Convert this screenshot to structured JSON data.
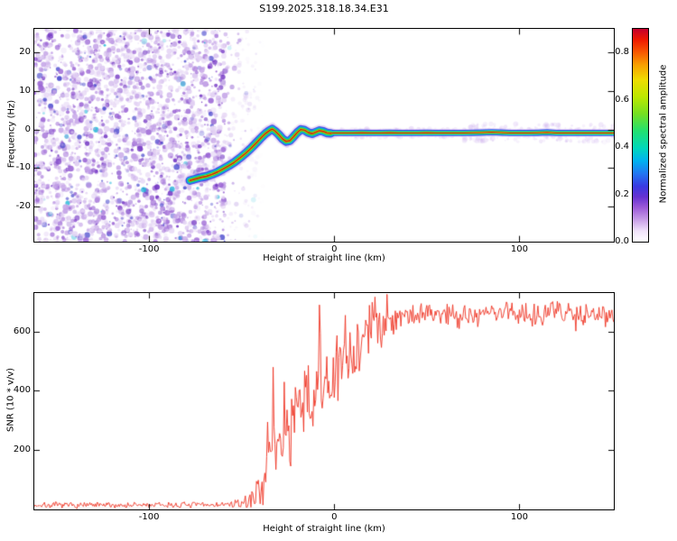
{
  "figure": {
    "title": "S199.2025.318.18.34.E31",
    "background": "#ffffff"
  },
  "chart_data": [
    {
      "type": "heatmap",
      "title": "S199.2025.318.18.34.E31",
      "xlabel": "Height of straight line (km)",
      "ylabel": "Frequency (Hz)",
      "xlim": [
        -162,
        151
      ],
      "ylim": [
        -29,
        26
      ],
      "xticks": [
        -100,
        0,
        100
      ],
      "yticks": [
        -20,
        -10,
        0,
        10,
        20
      ],
      "grid": false,
      "colorbar": {
        "label": "Normalized spectral amplitude",
        "tick_values": [
          0,
          0.2,
          0.4,
          0.6,
          0.8
        ],
        "tick_labels": [
          "0.0",
          "0.2",
          "0.4",
          "0.6",
          "0.8"
        ],
        "vmax": 0.9,
        "colormap": [
          [
            0,
            "#ffffff"
          ],
          [
            0.05,
            "#f0e2fa"
          ],
          [
            0.1,
            "#caa2e8"
          ],
          [
            0.16,
            "#9c5ad8"
          ],
          [
            0.21,
            "#6632d2"
          ],
          [
            0.26,
            "#3a3ae2"
          ],
          [
            0.32,
            "#2277f2"
          ],
          [
            0.38,
            "#00b2f0"
          ],
          [
            0.44,
            "#00d8bb"
          ],
          [
            0.52,
            "#22e070"
          ],
          [
            0.6,
            "#74e022"
          ],
          [
            0.68,
            "#bce800"
          ],
          [
            0.76,
            "#eedd00"
          ],
          [
            0.83,
            "#f8a000"
          ],
          [
            0.89,
            "#f85800"
          ],
          [
            0.95,
            "#ee1800"
          ],
          [
            1,
            "#c4002e"
          ]
        ]
      },
      "noise_region": {
        "x_min": -162,
        "x_max": -59,
        "seed": 42,
        "count": 2600,
        "colors": [
          [
            "#e4d4f4",
            0.35
          ],
          [
            "#c2a0e6",
            0.3
          ],
          [
            "#9a64d4",
            0.2
          ],
          [
            "#7438c4",
            0.1
          ],
          [
            "#4444cc",
            0.04
          ],
          [
            "#22b8d8",
            0.01
          ]
        ]
      },
      "trace": {
        "description": "meteor echo ridge, noisy rise from -13 Hz near -78 km to ~0 Hz, then flat near -0.9 Hz out to 151 km",
        "fuzz_color": "#cfb4ee",
        "flat_width_factor": 0.72,
        "layers": [
          {
            "color": "#d9c4f2",
            "width": 13,
            "alpha": 0.5
          },
          {
            "color": "#2b2bdf",
            "width": 9.5,
            "alpha": 0.85
          },
          {
            "color": "#00c3e8",
            "width": 7,
            "alpha": 0.95
          },
          {
            "color": "#1fcc44",
            "width": 4.6,
            "alpha": 1
          },
          {
            "color": "#d6de00",
            "width": 2.8,
            "alpha": 1
          },
          {
            "color": "#cc1111",
            "width": 1.4,
            "alpha": 1
          }
        ],
        "points": [
          [
            -78,
            -13.2
          ],
          [
            -75,
            -12.8
          ],
          [
            -72,
            -12.4
          ],
          [
            -69,
            -12.1
          ],
          [
            -66,
            -11.6
          ],
          [
            -63,
            -11.0
          ],
          [
            -60,
            -10.2
          ],
          [
            -57,
            -9.4
          ],
          [
            -54,
            -8.5
          ],
          [
            -51,
            -7.4
          ],
          [
            -48,
            -6.2
          ],
          [
            -45,
            -4.9
          ],
          [
            -42,
            -3.4
          ],
          [
            -39,
            -1.9
          ],
          [
            -37,
            -1.0
          ],
          [
            -35,
            -0.3
          ],
          [
            -33.5,
            0.1
          ],
          [
            -32,
            -0.4
          ],
          [
            -30,
            -1.3
          ],
          [
            -28,
            -2.4
          ],
          [
            -26,
            -3.1
          ],
          [
            -24,
            -2.9
          ],
          [
            -22,
            -1.9
          ],
          [
            -20,
            -0.8
          ],
          [
            -18,
            0.0
          ],
          [
            -16,
            -0.2
          ],
          [
            -14,
            -0.8
          ],
          [
            -12,
            -1.1
          ],
          [
            -10,
            -0.7
          ],
          [
            -8,
            -0.3
          ],
          [
            -6,
            -0.5
          ],
          [
            -4,
            -0.9
          ],
          [
            -2,
            -1.0
          ],
          [
            0,
            -0.9
          ],
          [
            5,
            -0.9
          ],
          [
            10,
            -0.9
          ],
          [
            15,
            -0.85
          ],
          [
            20,
            -0.9
          ],
          [
            25,
            -0.9
          ],
          [
            30,
            -0.85
          ],
          [
            35,
            -0.9
          ],
          [
            40,
            -0.9
          ],
          [
            45,
            -0.9
          ],
          [
            50,
            -0.85
          ],
          [
            55,
            -0.9
          ],
          [
            60,
            -0.9
          ],
          [
            65,
            -0.9
          ],
          [
            70,
            -0.9
          ],
          [
            75,
            -0.85
          ],
          [
            80,
            -0.8
          ],
          [
            85,
            -0.7
          ],
          [
            90,
            -0.8
          ],
          [
            95,
            -0.9
          ],
          [
            100,
            -0.9
          ],
          [
            105,
            -0.9
          ],
          [
            110,
            -0.85
          ],
          [
            115,
            -0.75
          ],
          [
            120,
            -0.9
          ],
          [
            125,
            -0.9
          ],
          [
            130,
            -0.9
          ],
          [
            135,
            -0.9
          ],
          [
            140,
            -0.9
          ],
          [
            145,
            -0.9
          ],
          [
            150,
            -0.9
          ],
          [
            151,
            -0.9
          ]
        ]
      }
    },
    {
      "type": "line",
      "xlabel": "Height of straight line (km)",
      "ylabel": "SNR (10 * v/v)",
      "xlim": [
        -162,
        151
      ],
      "ylim": [
        0,
        730
      ],
      "xticks": [
        -100,
        0,
        100
      ],
      "yticks": [
        200,
        400,
        600
      ],
      "grid": false,
      "series": [
        {
          "name": "SNR",
          "color": "#ee3322",
          "seed": 7,
          "sample_step_km": 0.5,
          "mean_keypoints": [
            [
              -162,
              14
            ],
            [
              -120,
              14
            ],
            [
              -80,
              15
            ],
            [
              -60,
              16
            ],
            [
              -52,
              18
            ],
            [
              -47,
              25
            ],
            [
              -43,
              45
            ],
            [
              -40,
              80
            ],
            [
              -37,
              130
            ],
            [
              -34,
              175
            ],
            [
              -31,
              215
            ],
            [
              -28,
              250
            ],
            [
              -25,
              270
            ],
            [
              -22,
              295
            ],
            [
              -19,
              320
            ],
            [
              -16,
              345
            ],
            [
              -13,
              370
            ],
            [
              -10,
              395
            ],
            [
              -7,
              410
            ],
            [
              -4,
              420
            ],
            [
              -1,
              435
            ],
            [
              2,
              455
            ],
            [
              5,
              480
            ],
            [
              8,
              510
            ],
            [
              11,
              540
            ],
            [
              14,
              565
            ],
            [
              17,
              590
            ],
            [
              20,
              615
            ],
            [
              24,
              635
            ],
            [
              28,
              648
            ],
            [
              34,
              655
            ],
            [
              45,
              660
            ],
            [
              60,
              662
            ],
            [
              75,
              655
            ],
            [
              90,
              668
            ],
            [
              105,
              660
            ],
            [
              120,
              668
            ],
            [
              135,
              658
            ],
            [
              151,
              668
            ]
          ],
          "noise_sigma_keypoints": [
            [
              -162,
              6
            ],
            [
              -60,
              6
            ],
            [
              -50,
              9
            ],
            [
              -44,
              18
            ],
            [
              -38,
              45
            ],
            [
              -32,
              65
            ],
            [
              -26,
              75
            ],
            [
              -20,
              85
            ],
            [
              -14,
              95
            ],
            [
              -8,
              95
            ],
            [
              -2,
              90
            ],
            [
              4,
              85
            ],
            [
              10,
              80
            ],
            [
              16,
              70
            ],
            [
              22,
              55
            ],
            [
              28,
              42
            ],
            [
              35,
              30
            ],
            [
              50,
              26
            ],
            [
              151,
              26
            ]
          ],
          "spikes": [
            [
              -36,
              295
            ],
            [
              -33,
              480
            ],
            [
              -27,
              430
            ],
            [
              -8,
              690
            ],
            [
              6,
              655
            ]
          ]
        }
      ]
    }
  ]
}
